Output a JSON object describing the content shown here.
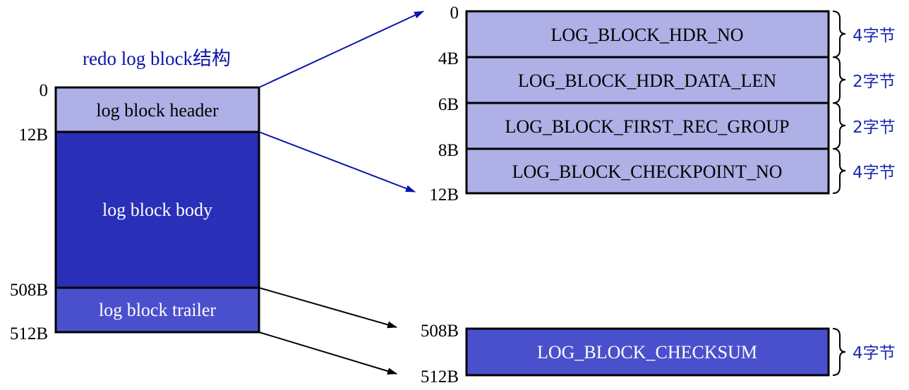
{
  "title": "redo log block结构",
  "colors": {
    "header_fill": "#aeb0e6",
    "body_fill": "#2a2fb8",
    "trailer_fill": "#4a50cc",
    "checksum_fill": "#4a50cc",
    "arrow_blue": "#0a14a8",
    "brace_label": "#1a2ab0",
    "border": "#000000"
  },
  "block": {
    "sections": [
      {
        "label": "log block header",
        "start": "0"
      },
      {
        "label": "log block body",
        "start": "12B"
      },
      {
        "label": "log block trailer",
        "start": "508B"
      }
    ],
    "end": "512B"
  },
  "header_detail": {
    "fields": [
      {
        "label": "LOG_BLOCK_HDR_NO",
        "start": "0",
        "size": "4字节"
      },
      {
        "label": "LOG_BLOCK_HDR_DATA_LEN",
        "start": "4B",
        "size": "2字节"
      },
      {
        "label": "LOG_BLOCK_FIRST_REC_GROUP",
        "start": "6B",
        "size": "2字节"
      },
      {
        "label": "LOG_BLOCK_CHECKPOINT_NO",
        "start": "8B",
        "size": "4字节"
      }
    ],
    "end": "12B"
  },
  "trailer_detail": {
    "fields": [
      {
        "label": "LOG_BLOCK_CHECKSUM",
        "start": "508B",
        "size": "4字节"
      }
    ],
    "end": "512B"
  }
}
